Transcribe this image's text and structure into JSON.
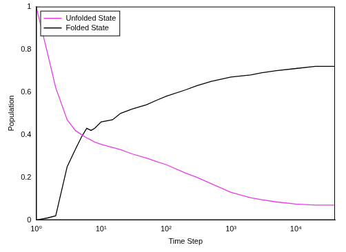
{
  "chart_data": {
    "type": "line",
    "x_label": "Time Step",
    "y_label": "Population",
    "x": [
      1,
      1.5,
      2,
      3,
      4,
      5,
      6,
      7,
      8,
      10,
      15,
      20,
      30,
      50,
      70,
      100,
      200,
      300,
      500,
      1000,
      2000,
      3000,
      5000,
      10000,
      20000,
      40000
    ],
    "series": [
      {
        "name": "Unfolded State",
        "color": "#e838e8",
        "values": [
          1.0,
          0.78,
          0.62,
          0.47,
          0.42,
          0.4,
          0.385,
          0.375,
          0.365,
          0.355,
          0.34,
          0.33,
          0.31,
          0.29,
          0.275,
          0.26,
          0.22,
          0.2,
          0.17,
          0.13,
          0.105,
          0.095,
          0.085,
          0.075,
          0.07,
          0.07
        ]
      },
      {
        "name": "Folded State",
        "color": "#000000",
        "values": [
          0,
          0.01,
          0.02,
          0.25,
          0.33,
          0.39,
          0.43,
          0.42,
          0.43,
          0.46,
          0.47,
          0.5,
          0.52,
          0.54,
          0.56,
          0.58,
          0.61,
          0.63,
          0.65,
          0.67,
          0.68,
          0.69,
          0.7,
          0.71,
          0.72,
          0.72
        ]
      }
    ],
    "xlim": [
      1,
      40000
    ],
    "xticks": [
      {
        "value": 1,
        "label": "10⁰"
      },
      {
        "value": 10,
        "label": "10¹"
      },
      {
        "value": 100,
        "label": "10²"
      },
      {
        "value": 1000,
        "label": "10³"
      },
      {
        "value": 10000,
        "label": "10⁴"
      }
    ],
    "ylim": [
      0,
      1
    ],
    "yticks": [
      0,
      0.2,
      0.4,
      0.6,
      0.8,
      1
    ],
    "log": "x",
    "grid": false,
    "legend": "top-left"
  }
}
